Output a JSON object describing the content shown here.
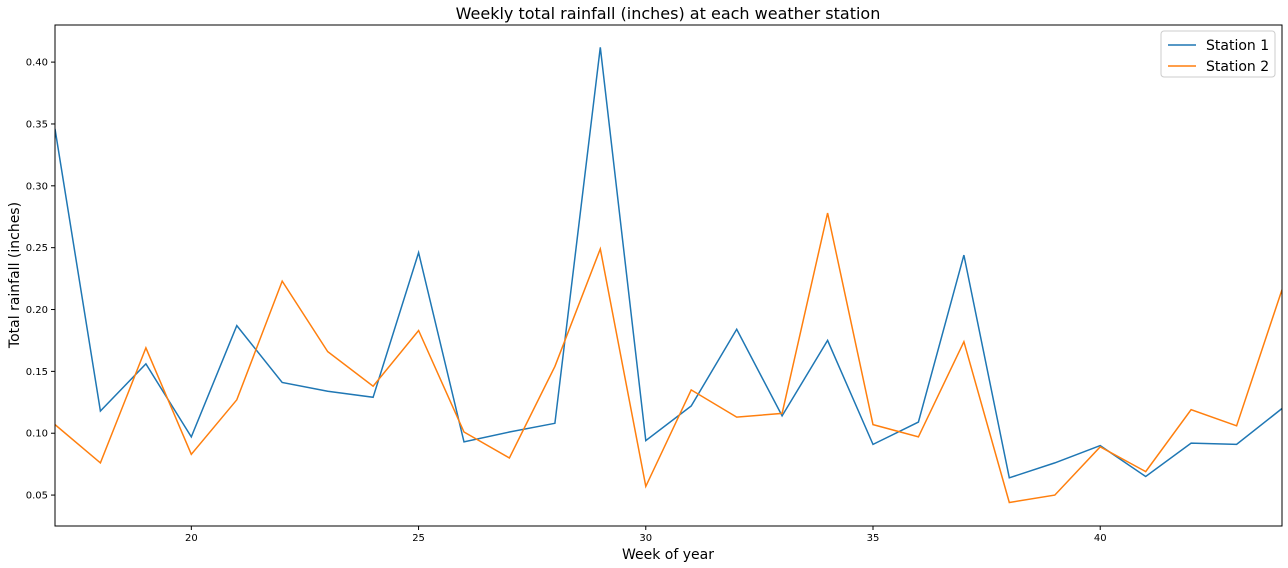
{
  "chart_data": {
    "type": "line",
    "title": "Weekly total rainfall (inches) at each weather station",
    "xlabel": "Week of year",
    "ylabel": "Total rainfall (inches)",
    "xlim": [
      17,
      44
    ],
    "ylim": [
      0.025,
      0.43
    ],
    "xticks": [
      20,
      25,
      30,
      35,
      40
    ],
    "yticks": [
      0.05,
      0.1,
      0.15,
      0.2,
      0.25,
      0.3,
      0.35,
      0.4
    ],
    "grid": false,
    "legend_position": "top-right",
    "x": [
      17,
      18,
      19,
      20,
      21,
      22,
      23,
      24,
      25,
      26,
      27,
      28,
      29,
      30,
      31,
      32,
      33,
      34,
      35,
      36,
      37,
      38,
      39,
      40,
      41,
      42,
      43,
      44
    ],
    "series": [
      {
        "name": "Station 1",
        "color": "#1f77b4",
        "values": [
          0.346,
          0.118,
          0.156,
          0.097,
          0.187,
          0.141,
          0.134,
          0.129,
          0.246,
          0.093,
          0.101,
          0.108,
          0.412,
          0.094,
          0.122,
          0.184,
          0.114,
          0.175,
          0.091,
          0.109,
          0.244,
          0.064,
          0.076,
          0.09,
          0.065,
          0.092,
          0.091,
          0.12
        ]
      },
      {
        "name": "Station 2",
        "color": "#ff7f0e",
        "values": [
          0.107,
          0.076,
          0.169,
          0.083,
          0.127,
          0.223,
          0.166,
          0.138,
          0.183,
          0.101,
          0.08,
          0.154,
          0.249,
          0.057,
          0.135,
          0.113,
          0.116,
          0.278,
          0.107,
          0.097,
          0.174,
          0.044,
          0.05,
          0.089,
          0.069,
          0.119,
          0.106,
          0.216
        ]
      }
    ]
  }
}
